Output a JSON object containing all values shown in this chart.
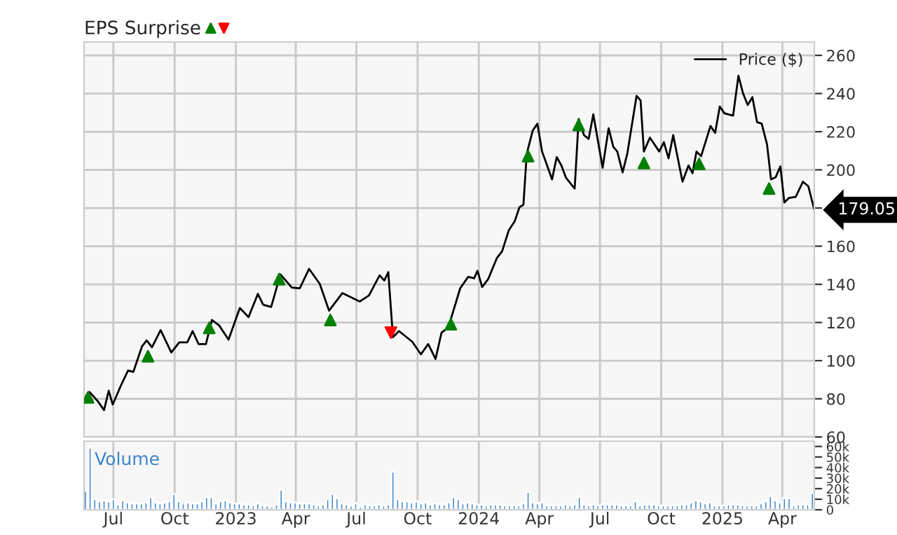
{
  "chart_data": [
    {
      "type": "line",
      "annotations": [
        "EPS Surprise",
        {
          "text": "179.05",
          "x": "2025-05-19",
          "y": 179.05
        }
      ],
      "xlim": [
        "2022-05-18",
        "2025-05-19"
      ],
      "ylim": [
        60,
        267
      ],
      "xticks": [
        {
          "value": "2022-07-01",
          "label": null
        },
        {
          "value": "2022-10-01",
          "label": null
        },
        {
          "value": "2023-01-01",
          "label": null
        },
        {
          "value": "2023-04-01",
          "label": null
        },
        {
          "value": "2023-07-01",
          "label": null
        },
        {
          "value": "2023-10-01",
          "label": null
        },
        {
          "value": "2024-01-01",
          "label": null
        },
        {
          "value": "2024-04-01",
          "label": null
        },
        {
          "value": "2024-07-01",
          "label": null
        },
        {
          "value": "2024-10-01",
          "label": null
        },
        {
          "value": "2025-01-01",
          "label": null
        },
        {
          "value": "2025-04-01",
          "label": null
        }
      ],
      "yticks": [
        60,
        80,
        100,
        120,
        140,
        160,
        {
          "value": 180,
          "label": null
        },
        200,
        220,
        240,
        260
      ],
      "tick_labels": "y",
      "grid": true,
      "legend": "top right",
      "series": [
        {
          "name": "Price ($)",
          "type": "line",
          "color": "#000000",
          "x": [
            "2022-05-19",
            "2022-05-26",
            "2022-06-07",
            "2022-06-17",
            "2022-06-24",
            "2022-06-30",
            "2022-07-12",
            "2022-07-23",
            "2022-07-31",
            "2022-08-13",
            "2022-08-20",
            "2022-08-28",
            "2022-09-10",
            "2022-09-26",
            "2022-10-08",
            "2022-10-20",
            "2022-10-28",
            "2022-11-06",
            "2022-11-17",
            "2022-11-26",
            "2022-12-07",
            "2022-12-21",
            "2023-01-07",
            "2023-01-20",
            "2023-02-03",
            "2023-02-11",
            "2023-02-23",
            "2023-03-09",
            "2023-03-26",
            "2023-04-07",
            "2023-04-21",
            "2023-05-07",
            "2023-05-21",
            "2023-06-10",
            "2023-07-06",
            "2023-07-20",
            "2023-08-05",
            "2023-08-12",
            "2023-08-18",
            "2023-08-25",
            "2023-09-03",
            "2023-09-23",
            "2023-10-06",
            "2023-10-17",
            "2023-10-28",
            "2023-11-06",
            "2023-11-16",
            "2023-12-04",
            "2023-12-16",
            "2023-12-25",
            "2023-12-30",
            "2024-01-06",
            "2024-01-15",
            "2024-01-28",
            "2024-02-05",
            "2024-02-15",
            "2024-02-24",
            "2024-03-02",
            "2024-03-08",
            "2024-03-13",
            "2024-03-22",
            "2024-03-29",
            "2024-04-05",
            "2024-04-10",
            "2024-04-20",
            "2024-04-27",
            "2024-05-04",
            "2024-05-11",
            "2024-05-24",
            "2024-05-30",
            "2024-06-07",
            "2024-06-14",
            "2024-06-21",
            "2024-07-05",
            "2024-07-14",
            "2024-07-21",
            "2024-07-27",
            "2024-08-04",
            "2024-08-11",
            "2024-08-25",
            "2024-08-31",
            "2024-09-05",
            "2024-09-14",
            "2024-09-28",
            "2024-10-05",
            "2024-10-12",
            "2024-10-19",
            "2024-11-02",
            "2024-11-11",
            "2024-11-17",
            "2024-11-23",
            "2024-11-30",
            "2024-12-14",
            "2024-12-21",
            "2024-12-28",
            "2025-01-04",
            "2025-01-17",
            "2025-01-25",
            "2025-02-01",
            "2025-02-08",
            "2025-02-15",
            "2025-02-22",
            "2025-03-01",
            "2025-03-09",
            "2025-03-15",
            "2025-03-22",
            "2025-03-29",
            "2025-04-04",
            "2025-04-11",
            "2025-04-21",
            "2025-05-02",
            "2025-05-10",
            "2025-05-19"
          ],
          "values": [
            80.7,
            83.6,
            79,
            74.1,
            84.3,
            77,
            86.7,
            94.8,
            94.1,
            107.5,
            110.6,
            107,
            116,
            104.3,
            109.6,
            109.6,
            115.5,
            108.7,
            108.7,
            121.3,
            118.4,
            111,
            127.6,
            122.8,
            135,
            129.3,
            128.1,
            145.2,
            138.3,
            137.9,
            148.1,
            140.3,
            126.2,
            135.4,
            131,
            134.2,
            144.7,
            142,
            146.4,
            112.3,
            115.5,
            109.9,
            103.3,
            108.7,
            100.9,
            114.7,
            117.2,
            137.9,
            143.9,
            143.2,
            147.1,
            138.6,
            142.7,
            153.7,
            157.3,
            168.3,
            173.1,
            180.4,
            181.7,
            208.4,
            220.6,
            224.2,
            209.6,
            204.8,
            195,
            206.7,
            202.3,
            195.8,
            190.2,
            226.7,
            218.2,
            216.2,
            229.1,
            201.1,
            221.8,
            212.1,
            209.6,
            198.7,
            208.4,
            238.8,
            236.4,
            209.6,
            216.9,
            209.6,
            214.5,
            206,
            218.2,
            193.8,
            202.3,
            198.2,
            209.6,
            207.2,
            223,
            219.4,
            233.2,
            229.6,
            228.4,
            249.3,
            240,
            234,
            238.1,
            225,
            224.2,
            213.3,
            195,
            196.2,
            201.8,
            182.9,
            185.3,
            185.8,
            193.8,
            191.4,
            179.05
          ]
        },
        {
          "type": "scatter",
          "color": "#008000",
          "marker": "triangle",
          "x": [
            "2022-05-24",
            "2022-08-22",
            "2022-11-22",
            "2023-03-07",
            "2023-05-23",
            "2023-11-20",
            "2024-03-15",
            "2024-05-30",
            "2024-09-05",
            "2024-11-27",
            "2025-03-12"
          ],
          "values": [
            80.7,
            102.3,
            117.2,
            142.7,
            121.3,
            119.1,
            207.2,
            223.5,
            203.6,
            203.1,
            190.2
          ]
        },
        {
          "type": "scatter",
          "color": "#ff0000",
          "marker": "triangle_down",
          "x": [
            "2023-08-22"
          ],
          "values": [
            114.7
          ]
        }
      ]
    },
    {
      "type": "bar",
      "xlim": [
        "2022-05-18",
        "2025-05-19"
      ],
      "ylim": [
        0,
        65000
      ],
      "xticks": [
        {
          "value": "2022-07-01",
          "label": "Jul"
        },
        {
          "value": "2022-10-01",
          "label": "Oct"
        },
        {
          "value": "2023-01-01",
          "label": "2023"
        },
        {
          "value": "2023-04-01",
          "label": "Apr"
        },
        {
          "value": "2023-07-01",
          "label": "Jul"
        },
        {
          "value": "2023-10-01",
          "label": "Oct"
        },
        {
          "value": "2024-01-01",
          "label": "2024"
        },
        {
          "value": "2024-04-01",
          "label": "Apr"
        },
        {
          "value": "2024-07-01",
          "label": "Jul"
        },
        {
          "value": "2024-10-01",
          "label": "Oct"
        },
        {
          "value": "2025-01-01",
          "label": "2025"
        },
        {
          "value": "2025-04-01",
          "label": "Apr"
        }
      ],
      "yticks": [
        {
          "value": 0,
          "label": "0"
        },
        {
          "value": 10000,
          "label": "10k"
        },
        {
          "value": 20000,
          "label": "20k"
        },
        {
          "value": 30000,
          "label": "30k"
        },
        {
          "value": 40000,
          "label": "40k"
        },
        {
          "value": 50000,
          "label": "50k"
        },
        {
          "value": 60000,
          "label": "60k"
        }
      ],
      "grid": "x",
      "legend": "top left",
      "series": [
        {
          "name": "Volume",
          "color": "#3c84c8",
          "x": [
            "2022-05-20",
            "2022-05-27",
            "2022-06-03",
            "2022-06-10",
            "2022-06-17",
            "2022-06-24",
            "2022-07-01",
            "2022-07-08",
            "2022-07-15",
            "2022-07-22",
            "2022-07-29",
            "2022-08-05",
            "2022-08-12",
            "2022-08-19",
            "2022-08-26",
            "2022-09-02",
            "2022-09-09",
            "2022-09-16",
            "2022-09-23",
            "2022-09-30",
            "2022-10-07",
            "2022-10-14",
            "2022-10-21",
            "2022-10-28",
            "2022-11-04",
            "2022-11-11",
            "2022-11-18",
            "2022-11-25",
            "2022-12-02",
            "2022-12-09",
            "2022-12-16",
            "2022-12-23",
            "2022-12-30",
            "2023-01-06",
            "2023-01-13",
            "2023-01-20",
            "2023-01-27",
            "2023-02-03",
            "2023-02-10",
            "2023-02-17",
            "2023-02-24",
            "2023-03-03",
            "2023-03-10",
            "2023-03-17",
            "2023-03-24",
            "2023-03-31",
            "2023-04-07",
            "2023-04-14",
            "2023-04-21",
            "2023-04-28",
            "2023-05-05",
            "2023-05-12",
            "2023-05-19",
            "2023-05-26",
            "2023-06-02",
            "2023-06-09",
            "2023-06-16",
            "2023-06-23",
            "2023-06-30",
            "2023-07-07",
            "2023-07-14",
            "2023-07-21",
            "2023-07-28",
            "2023-08-04",
            "2023-08-11",
            "2023-08-18",
            "2023-08-25",
            "2023-09-01",
            "2023-09-08",
            "2023-09-15",
            "2023-09-22",
            "2023-09-29",
            "2023-10-06",
            "2023-10-13",
            "2023-10-20",
            "2023-10-27",
            "2023-11-03",
            "2023-11-10",
            "2023-11-17",
            "2023-11-24",
            "2023-12-01",
            "2023-12-08",
            "2023-12-15",
            "2023-12-22",
            "2023-12-29",
            "2024-01-05",
            "2024-01-12",
            "2024-01-19",
            "2024-01-26",
            "2024-02-02",
            "2024-02-09",
            "2024-02-16",
            "2024-02-23",
            "2024-03-01",
            "2024-03-08",
            "2024-03-15",
            "2024-03-22",
            "2024-03-29",
            "2024-04-05",
            "2024-04-12",
            "2024-04-19",
            "2024-04-26",
            "2024-05-03",
            "2024-05-10",
            "2024-05-17",
            "2024-05-24",
            "2024-05-31",
            "2024-06-07",
            "2024-06-14",
            "2024-06-21",
            "2024-06-28",
            "2024-07-05",
            "2024-07-12",
            "2024-07-19",
            "2024-07-26",
            "2024-08-02",
            "2024-08-09",
            "2024-08-16",
            "2024-08-23",
            "2024-08-30",
            "2024-09-06",
            "2024-09-13",
            "2024-09-20",
            "2024-09-27",
            "2024-10-04",
            "2024-10-11",
            "2024-10-18",
            "2024-10-25",
            "2024-11-01",
            "2024-11-08",
            "2024-11-15",
            "2024-11-22",
            "2024-11-29",
            "2024-12-06",
            "2024-12-13",
            "2024-12-20",
            "2024-12-27",
            "2025-01-03",
            "2025-01-10",
            "2025-01-17",
            "2025-01-24",
            "2025-01-31",
            "2025-02-07",
            "2025-02-14",
            "2025-02-21",
            "2025-02-28",
            "2025-03-07",
            "2025-03-14",
            "2025-03-21",
            "2025-03-28",
            "2025-04-04",
            "2025-04-11",
            "2025-04-18",
            "2025-04-25",
            "2025-05-02",
            "2025-05-09",
            "2025-05-16"
          ],
          "values": [
            18000,
            59000,
            10000,
            8000,
            9000,
            8000,
            10000,
            5000,
            9000,
            7000,
            6000,
            6000,
            6000,
            7000,
            12000,
            7000,
            6000,
            7000,
            8000,
            15000,
            8000,
            6000,
            7000,
            6000,
            6000,
            8000,
            12000,
            12000,
            6000,
            8000,
            9000,
            7000,
            6000,
            6000,
            5000,
            5000,
            4000,
            6000,
            4000,
            4000,
            3000,
            5000,
            19000,
            8000,
            7000,
            7000,
            6000,
            6000,
            6000,
            5000,
            4000,
            5000,
            10000,
            15000,
            11000,
            6000,
            5000,
            4000,
            6000,
            3000,
            5000,
            4000,
            4000,
            5000,
            4000,
            5000,
            36000,
            10000,
            8000,
            8000,
            7000,
            8000,
            6000,
            7000,
            5000,
            6000,
            5000,
            5000,
            7000,
            12000,
            10000,
            6000,
            7000,
            6000,
            5000,
            5000,
            4000,
            5000,
            5000,
            5000,
            4000,
            4000,
            4000,
            4000,
            6000,
            17000,
            7000,
            6000,
            7000,
            4000,
            4000,
            4000,
            4000,
            5000,
            4000,
            5000,
            12000,
            5000,
            4000,
            5000,
            4000,
            5000,
            5000,
            5000,
            5000,
            4000,
            4000,
            4000,
            8000,
            4000,
            5000,
            5000,
            5000,
            4000,
            4000,
            4000,
            4000,
            4000,
            5000,
            5000,
            7000,
            9000,
            8000,
            6000,
            7000,
            4000,
            4000,
            4000,
            5000,
            5000,
            5000,
            4000,
            4000,
            4000,
            4000,
            6000,
            8000,
            13000,
            9000,
            7000,
            11000,
            11000,
            4000,
            5000,
            5000,
            5000,
            16000
          ]
        }
      ]
    }
  ]
}
